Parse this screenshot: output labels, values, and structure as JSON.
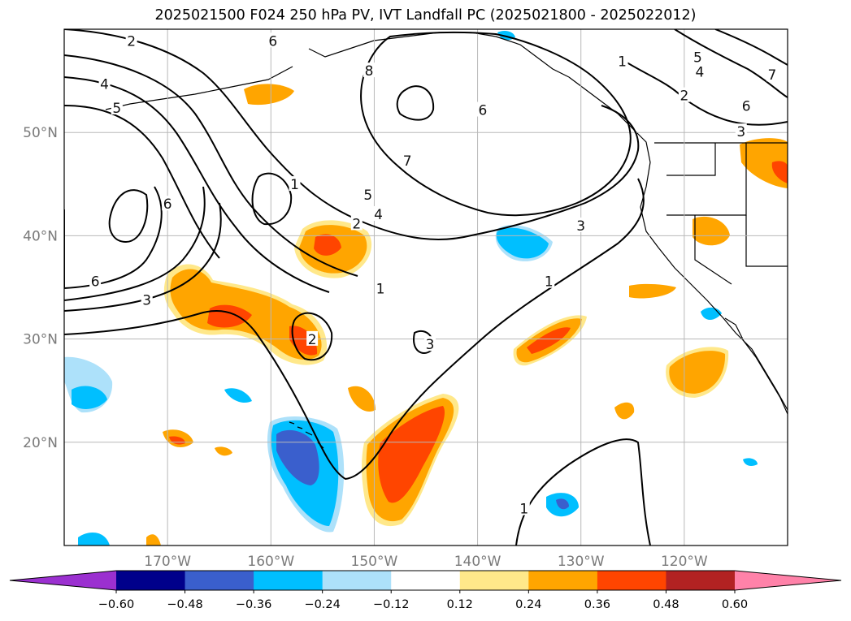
{
  "title": "2025021500 F024 250 hPa PV, IVT Landfall PC (2025021800 - 2025022012)",
  "map": {
    "projection": "plate-carree",
    "lon_range": [
      -180,
      -110
    ],
    "lat_range": [
      10,
      60
    ],
    "grid": true,
    "lat_ticks": [
      {
        "value": 20,
        "label": "20°N"
      },
      {
        "value": 30,
        "label": "30°N"
      },
      {
        "value": 40,
        "label": "40°N"
      },
      {
        "value": 50,
        "label": "50°N"
      }
    ],
    "lon_ticks": [
      {
        "value": -170,
        "label": "170°W"
      },
      {
        "value": -160,
        "label": "160°W"
      },
      {
        "value": -150,
        "label": "150°W"
      },
      {
        "value": -140,
        "label": "140°W"
      },
      {
        "value": -130,
        "label": "130°W"
      },
      {
        "value": -120,
        "label": "120°W"
      }
    ]
  },
  "colorbar": {
    "extend": "both",
    "boundaries": [
      -0.6,
      -0.48,
      -0.36,
      -0.24,
      -0.12,
      0.12,
      0.24,
      0.36,
      0.48,
      0.6
    ],
    "tick_labels": [
      "−0.60",
      "−0.48",
      "−0.36",
      "−0.24",
      "−0.12",
      "0.12",
      "0.24",
      "0.36",
      "0.48",
      "0.60"
    ],
    "colors": [
      "#9b30d0",
      "#00008b",
      "#3a5fcd",
      "#00bfff",
      "#ade1fa",
      "#ffffff",
      "#ffe88a",
      "#ffa500",
      "#ff4500",
      "#b22222",
      "#ff82a9"
    ]
  },
  "pv_contour_labels": [
    {
      "lon": -173.5,
      "lat": 58.8,
      "text": "2"
    },
    {
      "lon": -176.1,
      "lat": 54.6,
      "text": "4"
    },
    {
      "lon": -174.9,
      "lat": 52.3,
      "text": "5"
    },
    {
      "lon": -159.8,
      "lat": 58.8,
      "text": "6"
    },
    {
      "lon": -150.5,
      "lat": 55.9,
      "text": "8"
    },
    {
      "lon": -139.5,
      "lat": 52.1,
      "text": "6"
    },
    {
      "lon": -146.8,
      "lat": 47.2,
      "text": "7"
    },
    {
      "lon": -150.6,
      "lat": 43.9,
      "text": "5"
    },
    {
      "lon": -149.6,
      "lat": 42.0,
      "text": "4"
    },
    {
      "lon": -130.0,
      "lat": 40.9,
      "text": "3"
    },
    {
      "lon": -157.7,
      "lat": 44.9,
      "text": "1"
    },
    {
      "lon": -170.0,
      "lat": 43.0,
      "text": "6"
    },
    {
      "lon": -151.7,
      "lat": 41.1,
      "text": "2"
    },
    {
      "lon": -149.4,
      "lat": 34.8,
      "text": "1"
    },
    {
      "lon": -133.1,
      "lat": 35.5,
      "text": "1"
    },
    {
      "lon": -177.0,
      "lat": 35.5,
      "text": "6"
    },
    {
      "lon": -172.0,
      "lat": 33.7,
      "text": "3"
    },
    {
      "lon": -156.0,
      "lat": 29.9,
      "text": "2"
    },
    {
      "lon": -144.6,
      "lat": 29.4,
      "text": "3"
    },
    {
      "lon": -135.5,
      "lat": 13.5,
      "text": "1"
    },
    {
      "lon": -126.0,
      "lat": 56.8,
      "text": "1"
    },
    {
      "lon": -118.7,
      "lat": 57.2,
      "text": "5"
    },
    {
      "lon": -118.5,
      "lat": 55.8,
      "text": "4"
    },
    {
      "lon": -120.0,
      "lat": 53.5,
      "text": "2"
    },
    {
      "lon": -114.0,
      "lat": 52.5,
      "text": "6"
    },
    {
      "lon": -114.5,
      "lat": 50.0,
      "text": "3"
    },
    {
      "lon": -111.5,
      "lat": 55.5,
      "text": "7"
    }
  ]
}
